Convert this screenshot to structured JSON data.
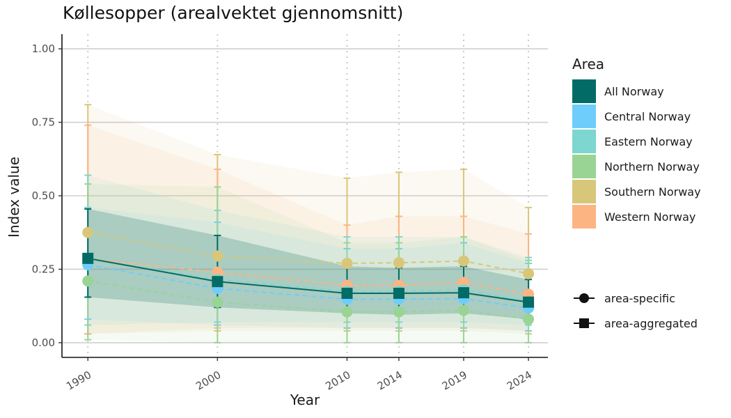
{
  "chart_data": {
    "type": "line",
    "title": "Køllesopper (arealvektet gjennomsnitt)",
    "xlabel": "Year",
    "ylabel": "Index value",
    "x": [
      1990,
      2000,
      2010,
      2014,
      2019,
      2024
    ],
    "xlim": [
      1988,
      2025.5
    ],
    "ylim": [
      -0.05,
      1.05
    ],
    "yticks": [
      0.0,
      0.25,
      0.5,
      0.75,
      1.0
    ],
    "ytick_labels": [
      "0.00",
      "0.25",
      "0.50",
      "0.75",
      "1.00"
    ],
    "xtick_labels": [
      "1990",
      "2000",
      "2010",
      "2014",
      "2019",
      "2024"
    ],
    "grid": "horizontal major lines, vertical dotted lines at each year",
    "legend_placement": "right",
    "legend_title": "Area",
    "series": [
      {
        "name": "Southern Norway",
        "color": "#D8C77A",
        "style": "dashed",
        "marker": "circle",
        "values": [
          0.375,
          0.295,
          0.27,
          0.272,
          0.278,
          0.235
        ],
        "lower": [
          0.03,
          0.04,
          0.04,
          0.04,
          0.04,
          0.03
        ],
        "upper": [
          0.81,
          0.64,
          0.56,
          0.58,
          0.59,
          0.46
        ]
      },
      {
        "name": "Western Norway",
        "color": "#FDB483",
        "style": "dashed",
        "marker": "circle",
        "values": [
          0.285,
          0.24,
          0.195,
          0.195,
          0.205,
          0.165
        ],
        "lower": [
          0.03,
          0.05,
          0.05,
          0.05,
          0.05,
          0.04
        ],
        "upper": [
          0.74,
          0.59,
          0.4,
          0.43,
          0.43,
          0.37
        ]
      },
      {
        "name": "Eastern Norway",
        "color": "#7DD6CF",
        "style": "dashed",
        "marker": "circle",
        "values": [
          0.285,
          0.215,
          0.175,
          0.175,
          0.18,
          0.14
        ],
        "lower": [
          0.06,
          0.07,
          0.07,
          0.07,
          0.07,
          0.06
        ],
        "upper": [
          0.57,
          0.45,
          0.36,
          0.36,
          0.36,
          0.29
        ]
      },
      {
        "name": "Central Norway",
        "color": "#6FCDFB",
        "style": "dashed",
        "marker": "circle",
        "values": [
          0.265,
          0.185,
          0.148,
          0.148,
          0.15,
          0.118
        ],
        "lower": [
          0.08,
          0.06,
          0.05,
          0.05,
          0.05,
          0.04
        ],
        "upper": [
          0.46,
          0.41,
          0.32,
          0.32,
          0.34,
          0.27
        ]
      },
      {
        "name": "Northern Norway",
        "color": "#9AD495",
        "style": "dashed",
        "marker": "circle",
        "values": [
          0.21,
          0.138,
          0.105,
          0.105,
          0.11,
          0.08
        ],
        "lower": [
          0.01,
          0.0,
          0.0,
          0.0,
          0.0,
          0.0
        ],
        "upper": [
          0.54,
          0.53,
          0.34,
          0.34,
          0.36,
          0.28
        ]
      },
      {
        "name": "All Norway",
        "color": "#036B65",
        "style": "solid",
        "marker": "square",
        "values": [
          0.287,
          0.208,
          0.168,
          0.168,
          0.17,
          0.138
        ],
        "lower": [
          0.155,
          0.12,
          0.1,
          0.095,
          0.1,
          0.08
        ],
        "upper": [
          0.455,
          0.365,
          0.26,
          0.255,
          0.26,
          0.215
        ]
      }
    ],
    "legend_items": [
      {
        "label": "All Norway",
        "color": "#036B65"
      },
      {
        "label": "Central Norway",
        "color": "#6FCDFB"
      },
      {
        "label": "Eastern Norway",
        "color": "#7DD6CF"
      },
      {
        "label": "Northern Norway",
        "color": "#9AD495"
      },
      {
        "label": "Southern Norway",
        "color": "#D8C77A"
      },
      {
        "label": "Western Norway",
        "color": "#FDB483"
      }
    ],
    "shape_legend": [
      {
        "label": "area-specific",
        "shape": "circle"
      },
      {
        "label": "area-aggregated",
        "shape": "square"
      }
    ]
  }
}
